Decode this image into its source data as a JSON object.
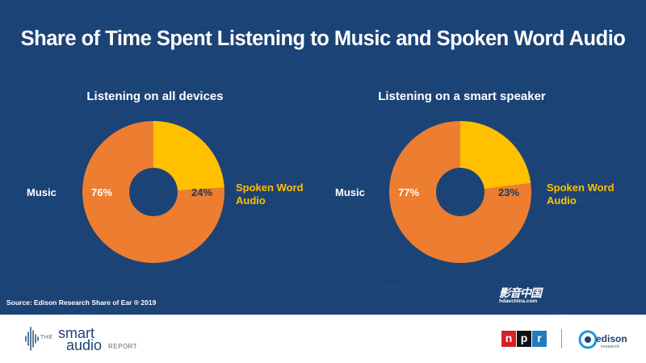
{
  "title": "Share of Time Spent Listening to Music and Spoken Word Audio",
  "source": "Source: Edison Research Share of Ear ® 2019",
  "watermark": {
    "cn": "影音中国",
    "en": "hdavchina.com"
  },
  "footer": {
    "smart_logo": {
      "the": "THE",
      "smart": "smart",
      "audio": "audio",
      "report": "REPORT"
    },
    "npr": {
      "n": "n",
      "p": "p",
      "r": "r"
    },
    "edison": {
      "word": "edison",
      "sub": "research"
    }
  },
  "colors": {
    "background": "#1c4376",
    "music": "#ed7d31",
    "spoken": "#ffc000",
    "text": "#ffffff",
    "spoken_label": "#ffc000"
  },
  "chart_data": [
    {
      "type": "pie",
      "variant": "donut",
      "title": "Listening on all devices",
      "categories": [
        "Music",
        "Spoken Word Audio"
      ],
      "values": [
        76,
        24
      ],
      "value_labels": [
        "76%",
        "24%"
      ],
      "category_labels": {
        "music": "Music",
        "spoken": [
          "Spoken Word",
          "Audio"
        ]
      }
    },
    {
      "type": "pie",
      "variant": "donut",
      "title": "Listening on a smart speaker",
      "categories": [
        "Music",
        "Spoken Word Audio"
      ],
      "values": [
        77,
        23
      ],
      "value_labels": [
        "77%",
        "23%"
      ],
      "category_labels": {
        "music": "Music",
        "spoken": [
          "Spoken Word",
          "Audio"
        ]
      }
    }
  ]
}
